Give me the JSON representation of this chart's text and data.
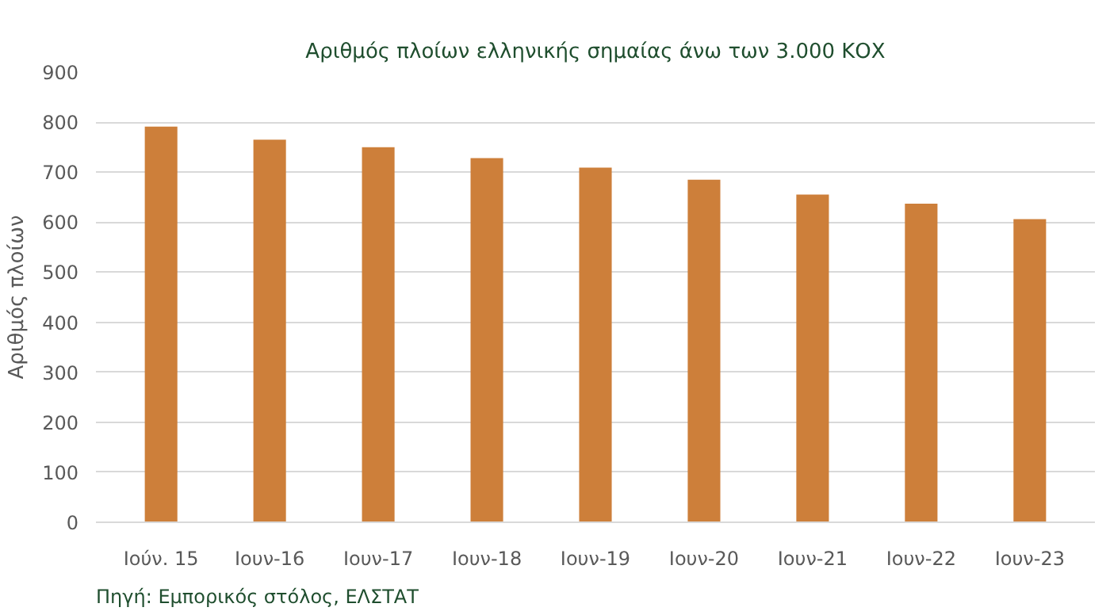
{
  "chart_data": {
    "type": "bar",
    "title": "Αριθμός πλοίων ελληνικής σημαίας άνω των 3.000 ΚΟΧ",
    "ylabel": "Αριθμός πλοίων",
    "categories": [
      "Ιούν. 15",
      "Ιουν-16",
      "Ιουν-17",
      "Ιουν-18",
      "Ιουν-19",
      "Ιουν-20",
      "Ιουν-21",
      "Ιουν-22",
      "Ιουν-23"
    ],
    "values": [
      791,
      765,
      750,
      728,
      709,
      685,
      655,
      637,
      606
    ],
    "color": "#cd7f3a",
    "ylim": [
      0,
      900
    ],
    "yticks": [
      0,
      100,
      200,
      300,
      400,
      500,
      600,
      700,
      800,
      900
    ],
    "grid": "y",
    "annotations": [
      "Πηγή: Εμπορικός στόλος, ΕΛΣΤΑΤ"
    ]
  }
}
